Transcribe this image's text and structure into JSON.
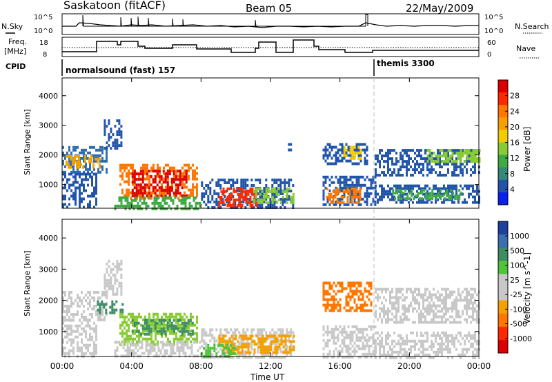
{
  "header": {
    "station": "Saskatoon (fitACF)",
    "beam": "Beam 05",
    "date": "22/May/2009"
  },
  "noise_panel": {
    "left_label": "N.Sky",
    "right_label": "N.Search",
    "left_ticks": [
      "10^5",
      "10^0"
    ],
    "right_ticks": [
      "10^5",
      "10^0"
    ]
  },
  "freq_panel": {
    "left_label_1": "Freq.",
    "left_label_2": "[MHz]",
    "right_label": "Nave",
    "left_ticks": [
      "18",
      "8"
    ],
    "right_ticks": [
      "60",
      "0"
    ]
  },
  "cpid": {
    "label": "CPID",
    "modes": [
      {
        "name": "normalsound (fast) 157",
        "start_hour": 0
      },
      {
        "name": "themis 3300",
        "start_hour": 18
      }
    ]
  },
  "chart_data": [
    {
      "type": "heatmap",
      "title": "Power",
      "xlabel": "",
      "ylabel": "Slant Range [km]",
      "xlim": [
        0,
        24
      ],
      "ylim": [
        200,
        4600
      ],
      "y_ticks": [
        "1000",
        "2000",
        "3000",
        "4000"
      ],
      "colorbar": {
        "label": "Power [dB]",
        "ticks": [
          "28",
          "24",
          "20",
          "16",
          "12",
          "8",
          "4"
        ],
        "colors": [
          "#dd0000",
          "#ff2a00",
          "#ff7700",
          "#f5a000",
          "#f2cc00",
          "#88cc33",
          "#3faa44",
          "#338877",
          "#2255aa",
          "#0a22ee"
        ]
      },
      "echo_regions": [
        {
          "t0": 0.0,
          "t1": 2.6,
          "r0": 1400,
          "r1": 2300,
          "color": "#2e6db0"
        },
        {
          "t0": 0.2,
          "t1": 2.2,
          "r0": 1600,
          "r1": 2000,
          "color": "#f5a000"
        },
        {
          "t0": 0.0,
          "t1": 2.0,
          "r0": 200,
          "r1": 1400,
          "color": "#2255aa"
        },
        {
          "t0": 2.4,
          "t1": 3.4,
          "r0": 2200,
          "r1": 3200,
          "color": "#2255aa"
        },
        {
          "t0": 3.3,
          "t1": 7.8,
          "r0": 500,
          "r1": 1700,
          "color": "#ff7700"
        },
        {
          "t0": 4.0,
          "t1": 7.2,
          "r0": 600,
          "r1": 1500,
          "color": "#dd0000"
        },
        {
          "t0": 3.0,
          "t1": 8.0,
          "r0": 200,
          "r1": 600,
          "color": "#3faa44"
        },
        {
          "t0": 8.0,
          "t1": 13.3,
          "r0": 200,
          "r1": 1200,
          "color": "#2255aa"
        },
        {
          "t0": 9.0,
          "t1": 11.2,
          "r0": 300,
          "r1": 900,
          "color": "#ff2a00"
        },
        {
          "t0": 11.0,
          "t1": 13.3,
          "r0": 400,
          "r1": 900,
          "color": "#88cc33"
        },
        {
          "t0": 13.0,
          "t1": 13.3,
          "r0": 2000,
          "r1": 2400,
          "color": "#2255aa"
        },
        {
          "t0": 15.0,
          "t1": 18.0,
          "r0": 300,
          "r1": 1300,
          "color": "#2255aa"
        },
        {
          "t0": 15.2,
          "t1": 17.2,
          "r0": 400,
          "r1": 900,
          "color": "#ff7700"
        },
        {
          "t0": 15.0,
          "t1": 17.6,
          "r0": 1700,
          "r1": 2400,
          "color": "#2255aa"
        },
        {
          "t0": 16.2,
          "t1": 17.2,
          "r0": 1900,
          "r1": 2300,
          "color": "#f2cc00"
        },
        {
          "t0": 18.0,
          "t1": 24.0,
          "r0": 400,
          "r1": 1000,
          "color": "#2255aa"
        },
        {
          "t0": 19.0,
          "t1": 23.0,
          "r0": 500,
          "r1": 850,
          "color": "#3faa44"
        },
        {
          "t0": 18.0,
          "t1": 24.0,
          "r0": 1300,
          "r1": 2200,
          "color": "#2255aa"
        },
        {
          "t0": 21.0,
          "t1": 24.0,
          "r0": 1800,
          "r1": 2200,
          "color": "#88cc33"
        }
      ]
    },
    {
      "type": "heatmap",
      "title": "Velocity",
      "xlabel": "Time UT",
      "ylabel": "Slant Range [km]",
      "xlim": [
        0,
        24
      ],
      "ylim": [
        200,
        4600
      ],
      "x_ticks": [
        "00:00",
        "04:00",
        "08:00",
        "12:00",
        "16:00",
        "20:00",
        "00:00"
      ],
      "y_ticks": [
        "1000",
        "2000",
        "3000",
        "4000"
      ],
      "colorbar": {
        "label": "Velocity [m s^-1]",
        "ticks": [
          "1000",
          "500",
          "100",
          "25",
          "-25",
          "-100",
          "-500",
          "-1000"
        ],
        "colors": [
          "#1e3f9e",
          "#3a6fb0",
          "#3e8c66",
          "#4fc33a",
          "#c8c8c8",
          "#c8c8c8",
          "#f5a000",
          "#ff7700",
          "#ff2a00",
          "#dd0000"
        ]
      },
      "echo_regions": [
        {
          "t0": 0.0,
          "t1": 2.6,
          "r0": 1400,
          "r1": 2300,
          "color": "#c8c8c8"
        },
        {
          "t0": 0.0,
          "t1": 2.0,
          "r0": 200,
          "r1": 1400,
          "color": "#c8c8c8"
        },
        {
          "t0": 2.4,
          "t1": 3.4,
          "r0": 2200,
          "r1": 3300,
          "color": "#c8c8c8"
        },
        {
          "t0": 2.0,
          "t1": 3.5,
          "r0": 1600,
          "r1": 2000,
          "color": "#3e8c66"
        },
        {
          "t0": 3.3,
          "t1": 7.8,
          "r0": 600,
          "r1": 1600,
          "color": "#88cc33"
        },
        {
          "t0": 4.0,
          "t1": 7.5,
          "r0": 900,
          "r1": 1400,
          "color": "#3e8c66"
        },
        {
          "t0": 3.0,
          "t1": 8.0,
          "r0": 200,
          "r1": 700,
          "color": "#c8c8c8"
        },
        {
          "t0": 8.0,
          "t1": 13.3,
          "r0": 200,
          "r1": 1100,
          "color": "#c8c8c8"
        },
        {
          "t0": 9.0,
          "t1": 13.3,
          "r0": 300,
          "r1": 900,
          "color": "#f5a000"
        },
        {
          "t0": 8.0,
          "t1": 10.0,
          "r0": 200,
          "r1": 600,
          "color": "#4fc33a"
        },
        {
          "t0": 15.0,
          "t1": 18.0,
          "r0": 200,
          "r1": 1200,
          "color": "#c8c8c8"
        },
        {
          "t0": 15.0,
          "t1": 17.8,
          "r0": 1700,
          "r1": 2600,
          "color": "#ff7700"
        },
        {
          "t0": 18.0,
          "t1": 24.0,
          "r0": 200,
          "r1": 1000,
          "color": "#c8c8c8"
        },
        {
          "t0": 18.0,
          "t1": 24.0,
          "r0": 1300,
          "r1": 2400,
          "color": "#c8c8c8"
        }
      ]
    }
  ]
}
